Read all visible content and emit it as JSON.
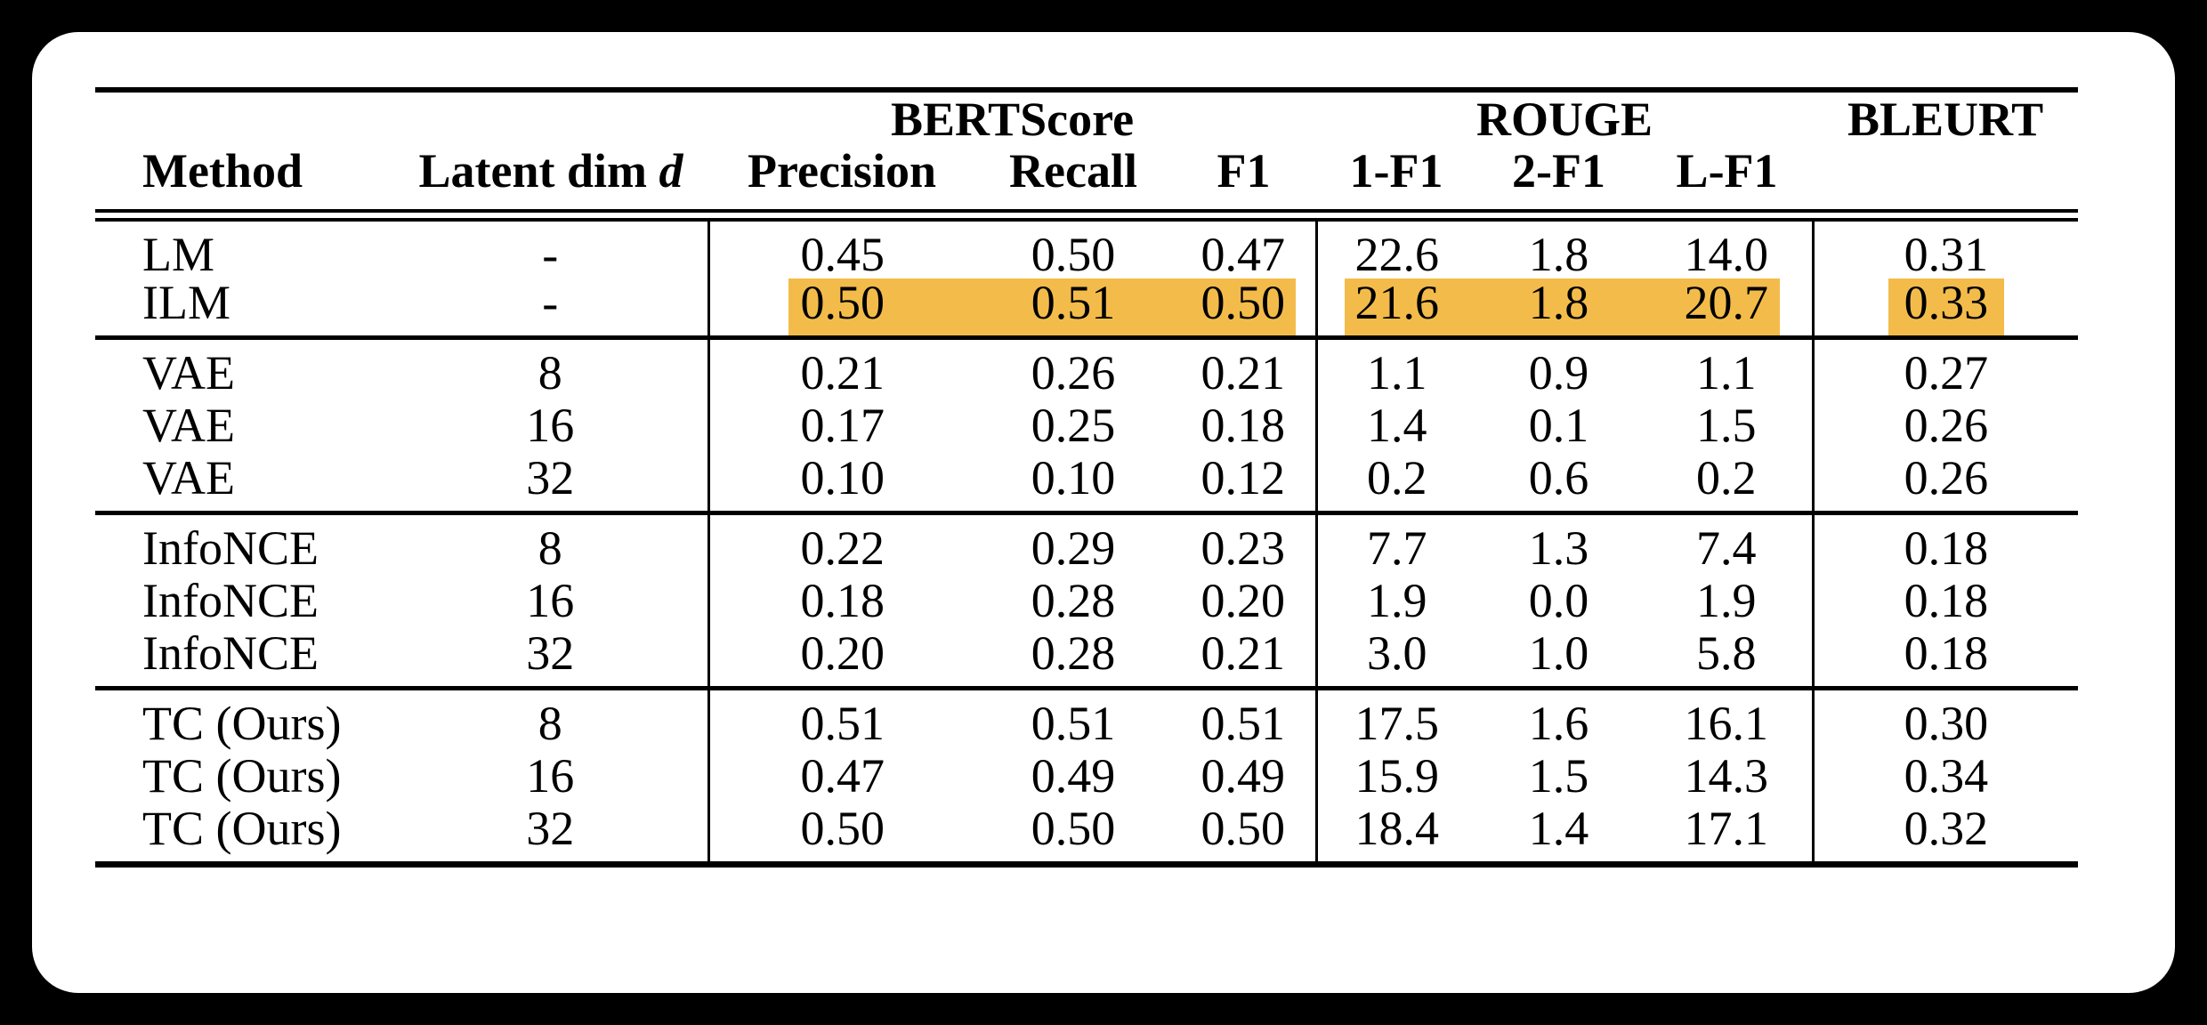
{
  "colors": {
    "page_background": "#000000",
    "card_background": "#FFFFFF",
    "text": "#000000",
    "rule": "#000000",
    "highlight": "#F3BC4A"
  },
  "table": {
    "group_headers": [
      {
        "label": "BERTScore"
      },
      {
        "label": "ROUGE"
      },
      {
        "label": "BLEURT"
      }
    ],
    "column_headers": {
      "method": "Method",
      "latent_label": "Latent dim",
      "latent_var": "d",
      "bertscore": [
        "Precision",
        "Recall",
        "F1"
      ],
      "rouge": [
        "1-F1",
        "2-F1",
        "L-F1"
      ],
      "bleurt": ""
    },
    "groups": [
      {
        "rows": [
          {
            "method": "LM",
            "latent_dim": "-",
            "values": [
              "0.45",
              "0.50",
              "0.47",
              "22.6",
              "1.8",
              "14.0",
              "0.31"
            ],
            "highlight": false
          },
          {
            "method": "ILM",
            "latent_dim": "-",
            "values": [
              "0.50",
              "0.51",
              "0.50",
              "21.6",
              "1.8",
              "20.7",
              "0.33"
            ],
            "highlight": true
          }
        ]
      },
      {
        "rows": [
          {
            "method": "VAE",
            "latent_dim": "8",
            "values": [
              "0.21",
              "0.26",
              "0.21",
              "1.1",
              "0.9",
              "1.1",
              "0.27"
            ],
            "highlight": false
          },
          {
            "method": "VAE",
            "latent_dim": "16",
            "values": [
              "0.17",
              "0.25",
              "0.18",
              "1.4",
              "0.1",
              "1.5",
              "0.26"
            ],
            "highlight": false
          },
          {
            "method": "VAE",
            "latent_dim": "32",
            "values": [
              "0.10",
              "0.10",
              "0.12",
              "0.2",
              "0.6",
              "0.2",
              "0.26"
            ],
            "highlight": false
          }
        ]
      },
      {
        "rows": [
          {
            "method": "InfoNCE",
            "latent_dim": "8",
            "values": [
              "0.22",
              "0.29",
              "0.23",
              "7.7",
              "1.3",
              "7.4",
              "0.18"
            ],
            "highlight": false
          },
          {
            "method": "InfoNCE",
            "latent_dim": "16",
            "values": [
              "0.18",
              "0.28",
              "0.20",
              "1.9",
              "0.0",
              "1.9",
              "0.18"
            ],
            "highlight": false
          },
          {
            "method": "InfoNCE",
            "latent_dim": "32",
            "values": [
              "0.20",
              "0.28",
              "0.21",
              "3.0",
              "1.0",
              "5.8",
              "0.18"
            ],
            "highlight": false
          }
        ]
      },
      {
        "rows": [
          {
            "method": "TC (Ours)",
            "latent_dim": "8",
            "values": [
              "0.51",
              "0.51",
              "0.51",
              "17.5",
              "1.6",
              "16.1",
              "0.30"
            ],
            "highlight": false
          },
          {
            "method": "TC (Ours)",
            "latent_dim": "16",
            "values": [
              "0.47",
              "0.49",
              "0.49",
              "15.9",
              "1.5",
              "14.3",
              "0.34"
            ],
            "highlight": false
          },
          {
            "method": "TC (Ours)",
            "latent_dim": "32",
            "values": [
              "0.50",
              "0.50",
              "0.50",
              "18.4",
              "1.4",
              "17.1",
              "0.32"
            ],
            "highlight": false
          }
        ]
      }
    ]
  }
}
